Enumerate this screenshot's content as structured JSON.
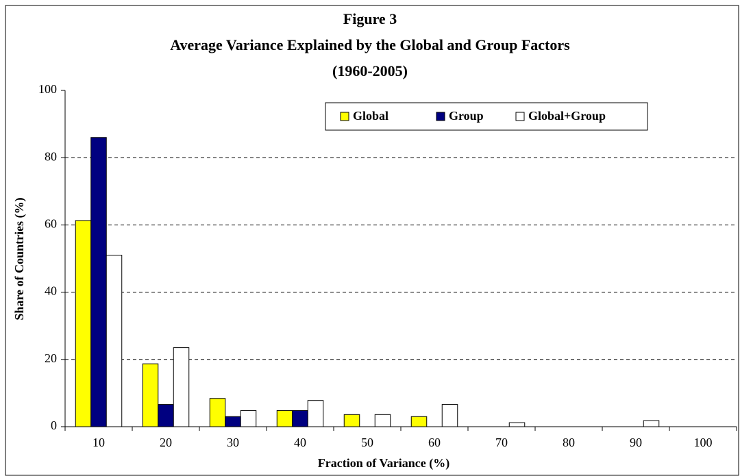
{
  "chart_data": {
    "type": "bar",
    "title": [
      "Figure 3",
      "Average Variance Explained by the Global and Group Factors",
      "(1960-2005)"
    ],
    "x_label": "Fraction of Variance (%)",
    "y_label": "Share of Countries (%)",
    "categories": [
      "10",
      "20",
      "30",
      "40",
      "50",
      "60",
      "70",
      "80",
      "90",
      "100"
    ],
    "series": [
      {
        "name": "Global",
        "color": "#ffff00",
        "values": [
          61.3,
          18.7,
          8.4,
          4.8,
          3.6,
          3.0,
          0,
          0,
          0,
          0
        ]
      },
      {
        "name": "Group",
        "color": "#000080",
        "values": [
          86,
          6.6,
          3.0,
          4.8,
          0,
          0,
          0,
          0,
          0,
          0
        ]
      },
      {
        "name": "Global+Group",
        "color": "#ffffff",
        "values": [
          51,
          23.5,
          4.8,
          7.8,
          3.6,
          6.6,
          1.2,
          0,
          1.8,
          0
        ]
      }
    ],
    "ylim": [
      0,
      100
    ],
    "yticks": [
      0,
      20,
      40,
      60,
      80,
      100
    ],
    "grid": true,
    "legend": "top"
  }
}
